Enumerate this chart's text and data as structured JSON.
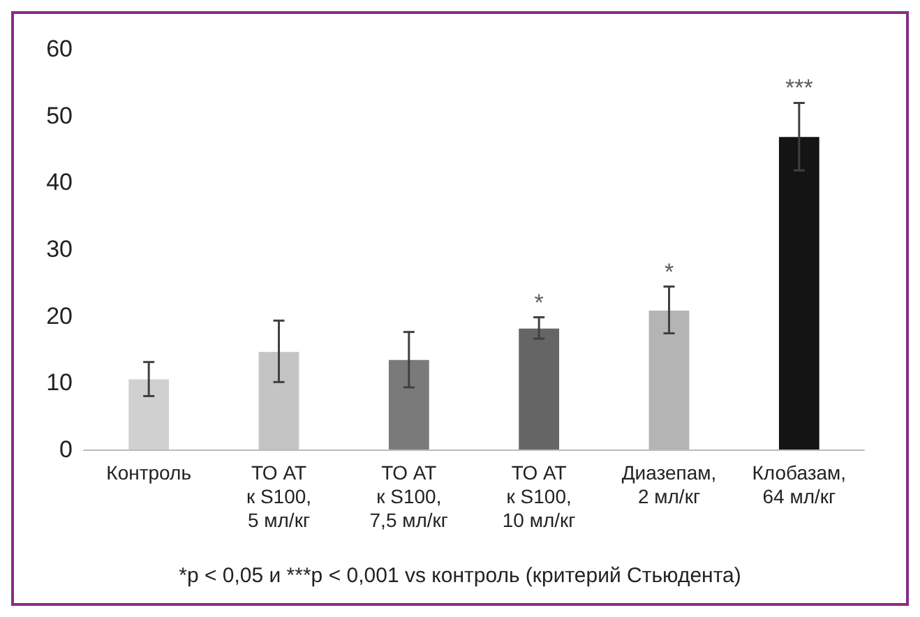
{
  "chart_data": {
    "type": "bar",
    "categories": [
      "Контроль",
      "ТО АТ\nк S100,\n5 мл/кг",
      "ТО АТ\nк S100,\n7,5 мл/кг",
      "ТО АТ\nк S100,\n10 мл/кг",
      "Диазепам,\n2 мл/кг",
      "Клобазам,\n64 мл/кг"
    ],
    "values": [
      10.5,
      14.6,
      13.4,
      18.1,
      20.8,
      46.8
    ],
    "colors": [
      "#d0d0d0",
      "#c4c4c4",
      "#7a7a7a",
      "#656565",
      "#b4b4b4",
      "#141414"
    ],
    "errors": [
      [
        8.0,
        13.1
      ],
      [
        10.1,
        19.3
      ],
      [
        9.3,
        17.6
      ],
      [
        16.6,
        19.8
      ],
      [
        17.4,
        24.4
      ],
      [
        41.8,
        51.9
      ]
    ],
    "ylim": [
      0,
      60
    ],
    "yticks": [
      0,
      10,
      20,
      30,
      40,
      50,
      60
    ],
    "grid": false,
    "annotations": [
      {
        "text": "*",
        "x": "ТО АТ\nк S100,\n10 мл/кг",
        "y": 19.8
      },
      {
        "text": "*",
        "x": "Диазепам,\n2 мл/кг",
        "y": 24.4
      },
      {
        "text": "***",
        "x": "Клобазам,\n64 мл/кг",
        "y": 51.9
      },
      "*p < 0,05 и ***p < 0,001 vs контроль (критерий Стьюдента)"
    ]
  }
}
